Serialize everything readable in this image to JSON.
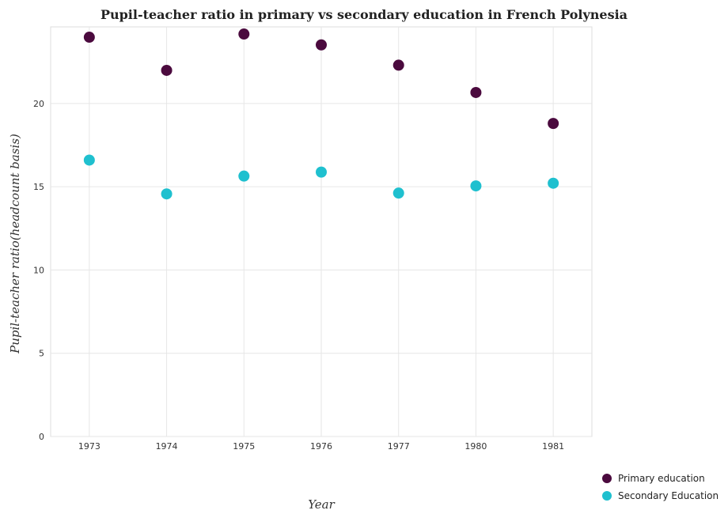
{
  "chart_data": {
    "type": "scatter",
    "title": "Pupil-teacher ratio in primary vs secondary education in French Polynesia",
    "xlabel": "Year",
    "ylabel": "Pupil-teacher ratio(headcount basis)",
    "categories": [
      "1973",
      "1974",
      "1975",
      "1976",
      "1977",
      "1980",
      "1981"
    ],
    "ylim": [
      0,
      24.6
    ],
    "yticks": [
      0,
      5,
      10,
      15,
      20
    ],
    "grid": true,
    "legend_position": "bottom-right",
    "series": [
      {
        "name": "Primary education",
        "color": "#4b0a3e",
        "values": [
          23.98,
          21.99,
          24.17,
          23.52,
          22.3,
          20.66,
          18.8
        ]
      },
      {
        "name": "Secondary Education",
        "color": "#1fc0cf",
        "values": [
          16.6,
          14.57,
          15.64,
          15.88,
          14.62,
          15.05,
          15.21
        ]
      }
    ]
  }
}
